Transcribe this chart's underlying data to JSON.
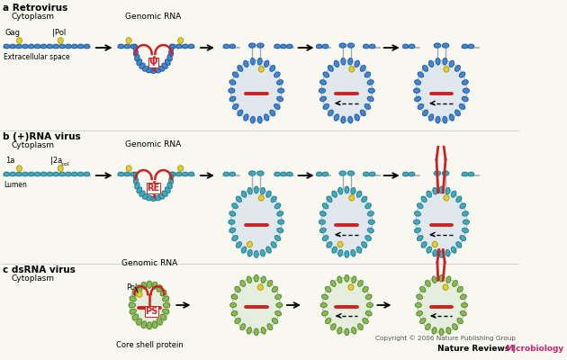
{
  "section_a_label": "a Retrovirus",
  "section_b_label": "b (+)RNA virus",
  "section_c_label": "c dsRNA virus",
  "cytoplasm_label": "Cytoplasm",
  "extracellular_label": "Extracellular space",
  "lumen_label": "Lumen",
  "gag_label": "Gag",
  "pol_label": "Pol",
  "pol_label2": "Pol",
  "onea_label": "1a",
  "twoapol_label": "2a",
  "pol_sup": "pol",
  "genomic_rna_label": "Genomic RNA",
  "core_shell_label": "Core shell protein",
  "psi_label": "Ψ",
  "re_label": "RE",
  "ps_label": "PS",
  "copyright_text": "Copyright © 2006 Nature Publishing Group",
  "nature_reviews_label": "Nature Reviews | ",
  "microbiology_label": "Microbiology",
  "color_blue_dark": "#4488cc",
  "color_blue_light": "#44aabb",
  "color_green": "#88bb55",
  "color_yellow": "#ddcc44",
  "color_red": "#cc2222",
  "color_bg": "#f8f8f0",
  "color_black": "#111111",
  "color_magenta": "#cc2277",
  "color_gray_line": "#aaaaaa",
  "color_vesicle_bg": "#e0e8ee",
  "color_vesicle_bg_green": "#e5eedd"
}
